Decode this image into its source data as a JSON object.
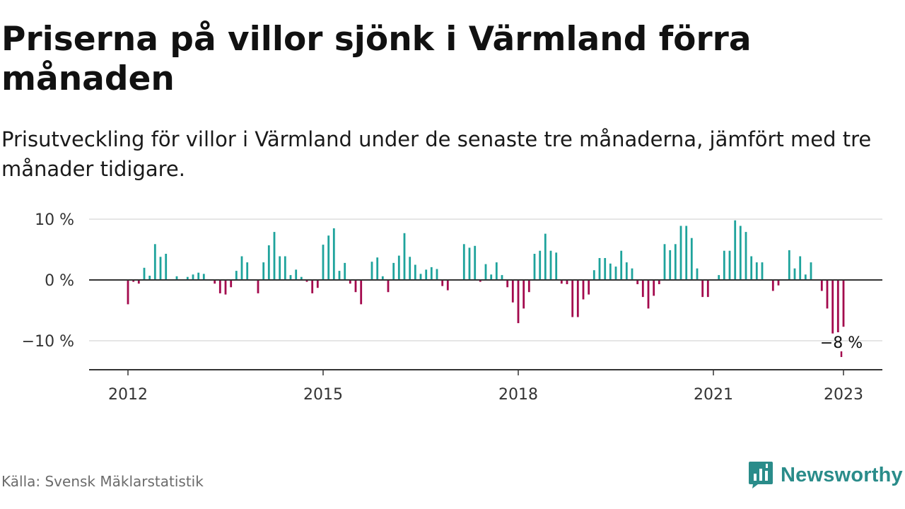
{
  "title": "Priserna på villor sjönk i Värmland förra månaden",
  "subtitle": "Prisutveckling för villor i Värmland under de senaste tre månaderna, jämfört med tre månader tidigare.",
  "source": "Källa: Svensk Mäklarstatistik",
  "brand": {
    "name": "Newsworthy",
    "icon": "newsworthy-logo-icon"
  },
  "colors": {
    "positive": "#1ea39c",
    "negative": "#a3094d",
    "zero_line": "#333333",
    "grid": "#dddddd"
  },
  "chart_data": {
    "type": "bar",
    "unit": "%",
    "ylim": [
      -15,
      10
    ],
    "yticks": [
      {
        "value": 10,
        "label": "10 %"
      },
      {
        "value": 0,
        "label": "0 %"
      },
      {
        "value": -10,
        "label": "−10 %"
      }
    ],
    "xticks": [
      {
        "value": "2012-01",
        "label": "2012"
      },
      {
        "value": "2015-01",
        "label": "2015"
      },
      {
        "value": "2018-01",
        "label": "2018"
      },
      {
        "value": "2021-01",
        "label": "2021"
      },
      {
        "value": "2023-01",
        "label": "2023"
      }
    ],
    "grid": true,
    "annotation": {
      "x": "2023-01",
      "label": "−8 %"
    },
    "series": [
      {
        "values": [
          [
            "2012-01",
            -4.0
          ],
          [
            "2012-02",
            -0.3
          ],
          [
            "2012-03",
            -0.6
          ],
          [
            "2012-04",
            2.0
          ],
          [
            "2012-05",
            0.7
          ],
          [
            "2012-06",
            5.9
          ],
          [
            "2012-07",
            3.8
          ],
          [
            "2012-08",
            4.3
          ],
          [
            "2012-10",
            0.6
          ],
          [
            "2012-12",
            0.5
          ],
          [
            "2013-01",
            0.9
          ],
          [
            "2013-02",
            1.2
          ],
          [
            "2013-03",
            1.0
          ],
          [
            "2013-05",
            -0.6
          ],
          [
            "2013-06",
            -2.2
          ],
          [
            "2013-07",
            -2.4
          ],
          [
            "2013-08",
            -1.2
          ],
          [
            "2013-09",
            1.5
          ],
          [
            "2013-10",
            3.9
          ],
          [
            "2013-11",
            2.9
          ],
          [
            "2014-01",
            -2.2
          ],
          [
            "2014-02",
            2.9
          ],
          [
            "2014-03",
            5.7
          ],
          [
            "2014-04",
            7.9
          ],
          [
            "2014-05",
            3.9
          ],
          [
            "2014-06",
            3.9
          ],
          [
            "2014-07",
            0.8
          ],
          [
            "2014-08",
            1.7
          ],
          [
            "2014-09",
            0.5
          ],
          [
            "2014-10",
            -0.3
          ],
          [
            "2014-11",
            -2.2
          ],
          [
            "2014-12",
            -1.3
          ],
          [
            "2015-01",
            5.8
          ],
          [
            "2015-02",
            7.3
          ],
          [
            "2015-03",
            8.5
          ],
          [
            "2015-04",
            1.5
          ],
          [
            "2015-05",
            2.8
          ],
          [
            "2015-06",
            -0.6
          ],
          [
            "2015-07",
            -2.0
          ],
          [
            "2015-08",
            -4.0
          ],
          [
            "2015-10",
            3.0
          ],
          [
            "2015-11",
            3.7
          ],
          [
            "2015-12",
            0.6
          ],
          [
            "2016-01",
            -2.0
          ],
          [
            "2016-02",
            2.8
          ],
          [
            "2016-03",
            4.0
          ],
          [
            "2016-04",
            7.7
          ],
          [
            "2016-05",
            3.8
          ],
          [
            "2016-06",
            2.5
          ],
          [
            "2016-07",
            1.0
          ],
          [
            "2016-08",
            1.7
          ],
          [
            "2016-09",
            2.1
          ],
          [
            "2016-10",
            1.8
          ],
          [
            "2016-11",
            -1.0
          ],
          [
            "2016-12",
            -1.7
          ],
          [
            "2017-03",
            5.9
          ],
          [
            "2017-04",
            5.3
          ],
          [
            "2017-05",
            5.6
          ],
          [
            "2017-06",
            -0.3
          ],
          [
            "2017-07",
            2.6
          ],
          [
            "2017-08",
            0.9
          ],
          [
            "2017-09",
            2.9
          ],
          [
            "2017-10",
            0.8
          ],
          [
            "2017-11",
            -1.2
          ],
          [
            "2017-12",
            -3.7
          ],
          [
            "2018-01",
            -7.1
          ],
          [
            "2018-02",
            -4.7
          ],
          [
            "2018-03",
            -2.0
          ],
          [
            "2018-04",
            4.3
          ],
          [
            "2018-05",
            4.8
          ],
          [
            "2018-06",
            7.6
          ],
          [
            "2018-07",
            4.8
          ],
          [
            "2018-08",
            4.5
          ],
          [
            "2018-09",
            -0.6
          ],
          [
            "2018-10",
            -0.7
          ],
          [
            "2018-11",
            -6.1
          ],
          [
            "2018-12",
            -6.1
          ],
          [
            "2019-01",
            -3.2
          ],
          [
            "2019-02",
            -2.4
          ],
          [
            "2019-03",
            1.6
          ],
          [
            "2019-04",
            3.6
          ],
          [
            "2019-05",
            3.6
          ],
          [
            "2019-06",
            2.7
          ],
          [
            "2019-07",
            2.2
          ],
          [
            "2019-08",
            4.8
          ],
          [
            "2019-09",
            2.9
          ],
          [
            "2019-10",
            1.9
          ],
          [
            "2019-11",
            -0.7
          ],
          [
            "2019-12",
            -2.8
          ],
          [
            "2020-01",
            -4.7
          ],
          [
            "2020-02",
            -2.6
          ],
          [
            "2020-03",
            -0.7
          ],
          [
            "2020-04",
            5.9
          ],
          [
            "2020-05",
            4.9
          ],
          [
            "2020-06",
            5.9
          ],
          [
            "2020-07",
            8.9
          ],
          [
            "2020-08",
            8.9
          ],
          [
            "2020-09",
            6.9
          ],
          [
            "2020-10",
            1.9
          ],
          [
            "2020-11",
            -2.8
          ],
          [
            "2020-12",
            -2.8
          ],
          [
            "2021-02",
            0.8
          ],
          [
            "2021-03",
            4.8
          ],
          [
            "2021-04",
            4.8
          ],
          [
            "2021-05",
            9.8
          ],
          [
            "2021-06",
            8.9
          ],
          [
            "2021-07",
            7.9
          ],
          [
            "2021-08",
            3.9
          ],
          [
            "2021-09",
            2.9
          ],
          [
            "2021-10",
            2.9
          ],
          [
            "2021-12",
            -1.8
          ],
          [
            "2022-01",
            -0.9
          ],
          [
            "2022-03",
            4.9
          ],
          [
            "2022-04",
            1.9
          ],
          [
            "2022-05",
            3.9
          ],
          [
            "2022-06",
            0.9
          ],
          [
            "2022-07",
            2.9
          ],
          [
            "2022-09",
            -1.8
          ],
          [
            "2022-10",
            -4.7
          ],
          [
            "2022-11",
            -8.8
          ],
          [
            "2022-12",
            -8.6
          ],
          [
            "2023-01",
            -7.7
          ]
        ]
      }
    ]
  }
}
